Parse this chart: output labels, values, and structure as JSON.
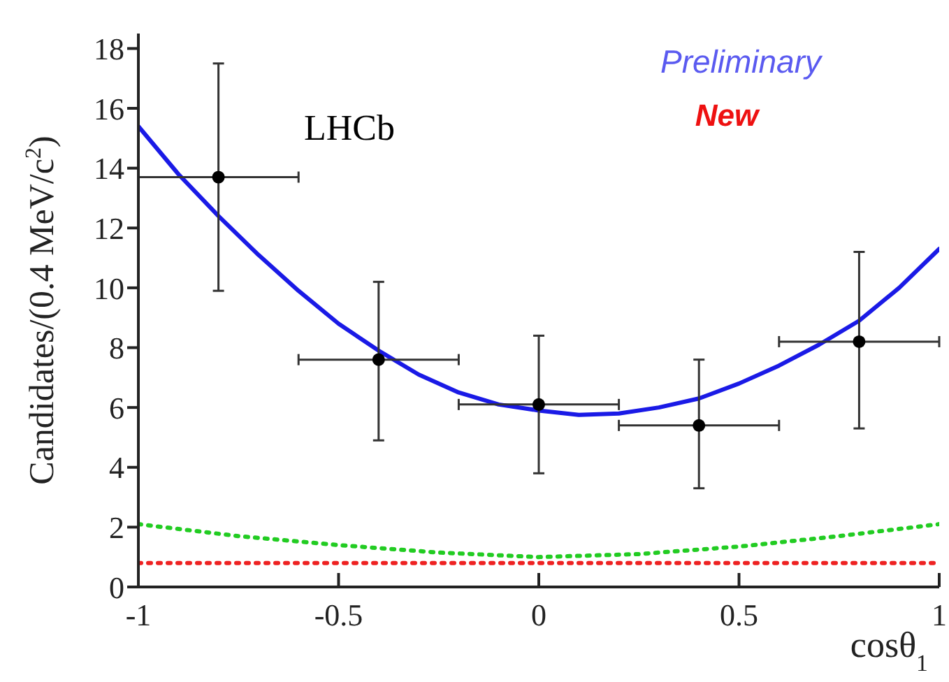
{
  "chart_data": {
    "type": "scatter",
    "xlabel": "cosθ$_{1}$",
    "ylabel": "Candidates/(0.4 MeV/c$^{2}$)",
    "annotations": [
      "LHCb",
      "Preliminary",
      "New"
    ],
    "xlim": [
      -1,
      1
    ],
    "xticks": [
      -1,
      -0.5,
      0,
      0.5,
      1
    ],
    "ylim": [
      0,
      18.5
    ],
    "yticks": [
      0,
      2,
      4,
      6,
      8,
      10,
      12,
      14,
      16,
      18
    ],
    "grid": false,
    "marker": "circle",
    "series": [
      {
        "type": "line",
        "marker": "none",
        "color": "#1a1ae6",
        "line_style": "solid",
        "x": [
          -1,
          -0.9,
          -0.8,
          -0.7,
          -0.6,
          -0.5,
          -0.4,
          -0.3,
          -0.2,
          -0.1,
          0,
          0.1,
          0.2,
          0.3,
          0.4,
          0.5,
          0.6,
          0.7,
          0.8,
          0.9,
          1
        ],
        "values": [
          15.4,
          13.8,
          12.4,
          11.1,
          9.9,
          8.8,
          7.9,
          7.1,
          6.5,
          6.1,
          5.9,
          5.75,
          5.8,
          6.0,
          6.3,
          6.8,
          7.4,
          8.1,
          8.9,
          10.0,
          11.3
        ]
      },
      {
        "type": "line",
        "marker": "none",
        "color": "#22cc22",
        "line_style": "dotted",
        "x": [
          -1,
          -0.75,
          -0.5,
          -0.25,
          0,
          0.25,
          0.5,
          0.75,
          1
        ],
        "values": [
          2.1,
          1.7,
          1.4,
          1.15,
          1.0,
          1.1,
          1.35,
          1.7,
          2.1
        ]
      },
      {
        "type": "line",
        "marker": "none",
        "color": "#ee2222",
        "line_style": "dotted",
        "x": [
          -1,
          1
        ],
        "values": [
          0.8,
          0.8
        ]
      },
      {
        "color": "#000000",
        "x": [
          -0.8,
          -0.4,
          0,
          0.4,
          0.8
        ],
        "values": [
          13.7,
          7.6,
          6.1,
          5.4,
          8.2
        ],
        "errors": [
          [
            9.9,
            17.5
          ],
          [
            4.9,
            10.2
          ],
          [
            3.8,
            8.4
          ],
          [
            3.3,
            7.6
          ],
          [
            5.3,
            11.2
          ]
        ],
        "xerrors": [
          0.2,
          0.2,
          0.2,
          0.2,
          0.2
        ]
      }
    ]
  }
}
